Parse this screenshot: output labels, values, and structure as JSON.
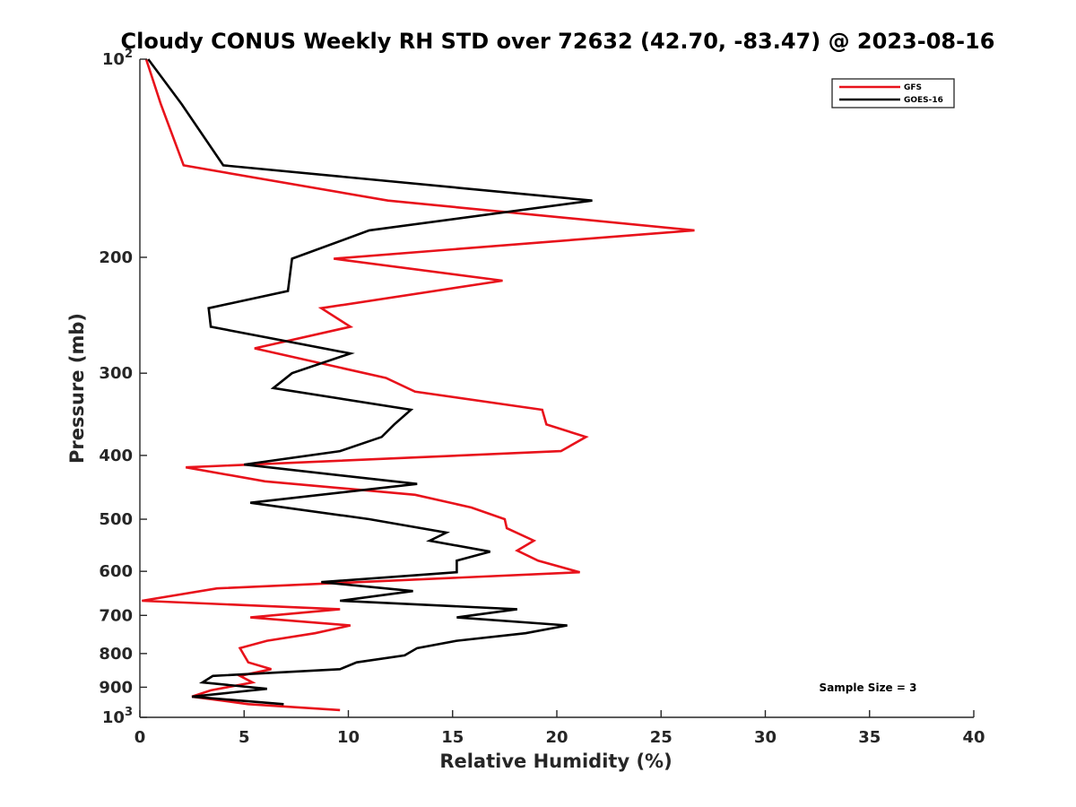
{
  "chart_data": {
    "type": "line",
    "title": "Cloudy CONUS Weekly RH STD over 72632 (42.70, -83.47) @ 2023-08-16",
    "xlabel": "Relative Humidity (%)",
    "ylabel": "Pressure (mb)",
    "xlim": [
      0,
      40
    ],
    "ylim": [
      100,
      1000
    ],
    "y_scale": "log",
    "y_reversed": true,
    "x_ticks": [
      "0",
      "5",
      "10",
      "15",
      "20",
      "25",
      "30",
      "35",
      "40"
    ],
    "y_ticks": [
      {
        "value": 100,
        "label": "10",
        "sup": "2"
      },
      {
        "value": 200,
        "label": "200"
      },
      {
        "value": 300,
        "label": "300"
      },
      {
        "value": 400,
        "label": "400"
      },
      {
        "value": 500,
        "label": "500"
      },
      {
        "value": 600,
        "label": "600"
      },
      {
        "value": 700,
        "label": "700"
      },
      {
        "value": 800,
        "label": "800"
      },
      {
        "value": 900,
        "label": "900"
      },
      {
        "value": 1000,
        "label": "10",
        "sup": "3"
      }
    ],
    "grid": false,
    "legend_position": "top-right",
    "annotation": "Sample Size = 3",
    "series": [
      {
        "name": "GFS",
        "color": "#e8121b",
        "points": [
          [
            0.3,
            100
          ],
          [
            1.0,
            117
          ],
          [
            2.1,
            145
          ],
          [
            11.9,
            164
          ],
          [
            26.6,
            182
          ],
          [
            9.3,
            201
          ],
          [
            17.4,
            217
          ],
          [
            8.7,
            239
          ],
          [
            10.1,
            255
          ],
          [
            5.5,
            275
          ],
          [
            11.8,
            305
          ],
          [
            13.2,
            320
          ],
          [
            19.3,
            341
          ],
          [
            19.5,
            359
          ],
          [
            21.4,
            375
          ],
          [
            20.2,
            394
          ],
          [
            2.2,
            417
          ],
          [
            6.0,
            438
          ],
          [
            13.2,
            459
          ],
          [
            15.9,
            480
          ],
          [
            17.5,
            500
          ],
          [
            17.6,
            516
          ],
          [
            18.9,
            539
          ],
          [
            18.1,
            558
          ],
          [
            19.1,
            578
          ],
          [
            21.1,
            602
          ],
          [
            3.7,
            637
          ],
          [
            0.1,
            665
          ],
          [
            9.6,
            685
          ],
          [
            5.3,
            705
          ],
          [
            10.1,
            725
          ],
          [
            8.4,
            745
          ],
          [
            6.1,
            765
          ],
          [
            4.8,
            785
          ],
          [
            5.0,
            805
          ],
          [
            5.2,
            825
          ],
          [
            6.3,
            845
          ],
          [
            4.8,
            865
          ],
          [
            5.4,
            885
          ],
          [
            3.4,
            910
          ],
          [
            2.5,
            930
          ],
          [
            5.2,
            955
          ],
          [
            9.6,
            975
          ]
        ]
      },
      {
        "name": "GOES-16",
        "color": "#000000",
        "points": [
          [
            0.4,
            100
          ],
          [
            2.0,
            117
          ],
          [
            4.0,
            145
          ],
          [
            21.7,
            164
          ],
          [
            11.0,
            182
          ],
          [
            7.3,
            201
          ],
          [
            7.1,
            225
          ],
          [
            3.3,
            239
          ],
          [
            3.4,
            255
          ],
          [
            10.1,
            280
          ],
          [
            7.3,
            300
          ],
          [
            6.4,
            316
          ],
          [
            13.0,
            341
          ],
          [
            12.2,
            359
          ],
          [
            11.6,
            375
          ],
          [
            9.6,
            394
          ],
          [
            5.0,
            413
          ],
          [
            13.3,
            442
          ],
          [
            5.3,
            472
          ],
          [
            11.0,
            500
          ],
          [
            14.7,
            524
          ],
          [
            13.9,
            539
          ],
          [
            16.8,
            560
          ],
          [
            15.2,
            578
          ],
          [
            15.2,
            602
          ],
          [
            8.7,
            623
          ],
          [
            13.1,
            643
          ],
          [
            9.6,
            665
          ],
          [
            18.1,
            685
          ],
          [
            15.2,
            705
          ],
          [
            20.5,
            725
          ],
          [
            18.5,
            745
          ],
          [
            15.2,
            765
          ],
          [
            13.3,
            785
          ],
          [
            12.7,
            805
          ],
          [
            10.4,
            825
          ],
          [
            9.6,
            845
          ],
          [
            3.5,
            865
          ],
          [
            3.0,
            885
          ],
          [
            6.1,
            905
          ],
          [
            2.5,
            930
          ],
          [
            6.9,
            955
          ]
        ]
      }
    ]
  }
}
